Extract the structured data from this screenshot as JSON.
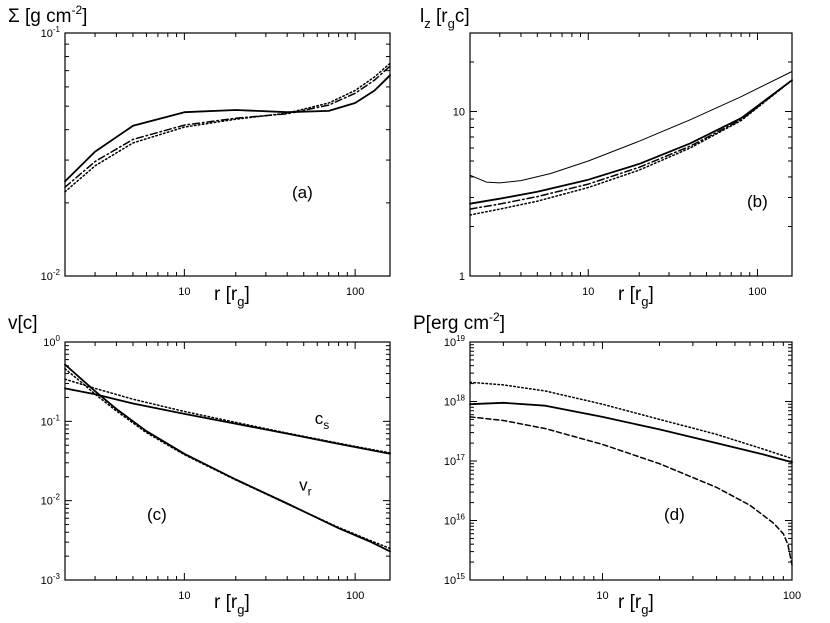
{
  "chart_data": [
    {
      "id": "a",
      "type": "line",
      "xscale": "log",
      "yscale": "log",
      "xlim": [
        2,
        160
      ],
      "ylim": [
        0.01,
        0.1
      ],
      "ylabel": "Σ [g cm",
      "ylabel_sup": "-2",
      "ylabel_end": "]",
      "xlabel": "r [r",
      "xlabel_sub": "g",
      "xlabel_end": "]",
      "panel_label": "(a)",
      "xticks": [
        {
          "v": 10,
          "label": "10"
        },
        {
          "v": 100,
          "label": "100"
        }
      ],
      "yticks": [
        {
          "v": 0.01,
          "base": "10",
          "exp": "-2"
        },
        {
          "v": 0.1,
          "base": "10",
          "exp": "-1"
        }
      ],
      "series": [
        {
          "name": "solid",
          "style": "solid",
          "width": 1.8,
          "x": [
            2,
            3,
            5,
            10,
            20,
            40,
            70,
            100,
            130,
            160
          ],
          "y": [
            0.0245,
            0.0325,
            0.0415,
            0.0472,
            0.0482,
            0.0472,
            0.0478,
            0.0515,
            0.058,
            0.067
          ]
        },
        {
          "name": "dash-dot",
          "style": "dashdot",
          "width": 1.5,
          "x": [
            2,
            3,
            5,
            10,
            20,
            40,
            70,
            100,
            130,
            160
          ],
          "y": [
            0.0232,
            0.0296,
            0.0365,
            0.0418,
            0.0446,
            0.0465,
            0.0505,
            0.0565,
            0.064,
            0.073
          ]
        },
        {
          "name": "dotted",
          "style": "dotted",
          "width": 1.5,
          "x": [
            2,
            3,
            5,
            10,
            20,
            40,
            70,
            100,
            130,
            160
          ],
          "y": [
            0.0222,
            0.0284,
            0.0353,
            0.041,
            0.0442,
            0.0468,
            0.0515,
            0.058,
            0.066,
            0.075
          ]
        }
      ]
    },
    {
      "id": "b",
      "type": "line",
      "xscale": "log",
      "yscale": "log",
      "xlim": [
        2,
        160
      ],
      "ylim": [
        1,
        30
      ],
      "ylabel": "l",
      "ylabel_sub": "z",
      "ylabel_end": " [r",
      "ylabel_sub2": "g",
      "ylabel_end2": "c]",
      "xlabel": "r [r",
      "xlabel_sub": "g",
      "xlabel_end": "]",
      "panel_label": "(b)",
      "xticks": [
        {
          "v": 10,
          "label": "10"
        },
        {
          "v": 100,
          "label": "100"
        }
      ],
      "yticks": [
        {
          "v": 1,
          "label": "1"
        },
        {
          "v": 10,
          "label": "10"
        }
      ],
      "series": [
        {
          "name": "thin-solid",
          "style": "solid",
          "width": 1.0,
          "x": [
            2,
            2.5,
            3,
            4,
            6,
            10,
            20,
            40,
            80,
            160
          ],
          "y": [
            4.1,
            3.72,
            3.68,
            3.8,
            4.2,
            5.0,
            6.6,
            8.9,
            12.3,
            17.5
          ]
        },
        {
          "name": "thick-solid",
          "style": "solid",
          "width": 1.8,
          "x": [
            2,
            3,
            5,
            10,
            20,
            40,
            80,
            160
          ],
          "y": [
            2.75,
            2.95,
            3.25,
            3.85,
            4.8,
            6.4,
            9.1,
            15.5
          ]
        },
        {
          "name": "dash-dot",
          "style": "dashdot",
          "width": 1.5,
          "x": [
            2,
            3,
            5,
            10,
            20,
            40,
            80,
            160
          ],
          "y": [
            2.55,
            2.74,
            3.04,
            3.62,
            4.58,
            6.15,
            8.9,
            15.5
          ]
        },
        {
          "name": "dotted",
          "style": "dotted",
          "width": 1.5,
          "x": [
            2,
            3,
            5,
            10,
            20,
            40,
            80,
            160
          ],
          "y": [
            2.35,
            2.55,
            2.85,
            3.45,
            4.4,
            6.0,
            8.8,
            15.5
          ]
        }
      ]
    },
    {
      "id": "c",
      "type": "line",
      "xscale": "log",
      "yscale": "log",
      "xlim": [
        2,
        160
      ],
      "ylim": [
        0.001,
        1
      ],
      "ylabel": "v[c]",
      "xlabel": "r [r",
      "xlabel_sub": "g",
      "xlabel_end": "]",
      "panel_label": "(c)",
      "annotations": [
        {
          "text": "c",
          "sub": "s",
          "x": 58,
          "y": 0.092
        },
        {
          "text": "v",
          "sub": "r",
          "x": 47,
          "y": 0.0135
        }
      ],
      "xticks": [
        {
          "v": 10,
          "label": "10"
        },
        {
          "v": 100,
          "label": "100"
        }
      ],
      "yticks": [
        {
          "v": 0.001,
          "base": "10",
          "exp": "-3"
        },
        {
          "v": 0.01,
          "base": "10",
          "exp": "-2"
        },
        {
          "v": 0.1,
          "base": "10",
          "exp": "-1"
        },
        {
          "v": 1,
          "base": "10",
          "exp": "0"
        }
      ],
      "series": [
        {
          "name": "cs-solid",
          "style": "solid",
          "width": 1.8,
          "x": [
            2,
            3,
            5,
            10,
            20,
            40,
            80,
            160
          ],
          "y": [
            0.26,
            0.22,
            0.168,
            0.124,
            0.093,
            0.07,
            0.052,
            0.039
          ]
        },
        {
          "name": "cs-dotted",
          "style": "dotted",
          "width": 1.5,
          "x": [
            2,
            3,
            5,
            10,
            20,
            40,
            80,
            160
          ],
          "y": [
            0.34,
            0.26,
            0.19,
            0.133,
            0.097,
            0.071,
            0.053,
            0.04
          ]
        },
        {
          "name": "vr-solid",
          "style": "solid",
          "width": 1.8,
          "x": [
            2,
            2.5,
            3,
            4,
            6,
            10,
            20,
            40,
            80,
            120,
            160
          ],
          "y": [
            0.52,
            0.34,
            0.24,
            0.143,
            0.075,
            0.039,
            0.0185,
            0.0092,
            0.0045,
            0.0031,
            0.0023
          ]
        },
        {
          "name": "vr-dotted",
          "style": "dotted",
          "width": 1.5,
          "x": [
            2,
            2.5,
            3,
            4,
            6,
            10,
            20,
            40,
            80,
            120,
            160
          ],
          "y": [
            0.46,
            0.31,
            0.22,
            0.135,
            0.072,
            0.038,
            0.0182,
            0.0091,
            0.0046,
            0.0032,
            0.0025
          ]
        }
      ]
    },
    {
      "id": "d",
      "type": "line",
      "xscale": "log",
      "yscale": "log",
      "xlim": [
        2,
        100
      ],
      "ylim": [
        1000000000000000.0,
        1e+19
      ],
      "ylabel": "P[erg cm",
      "ylabel_sup": "-2",
      "ylabel_end": "]",
      "xlabel": "r [r",
      "xlabel_sub": "g",
      "xlabel_end": "]",
      "panel_label": "(d)",
      "xticks": [
        {
          "v": 10,
          "label": "10"
        },
        {
          "v": 100,
          "label": "100"
        }
      ],
      "yticks": [
        {
          "v": 1000000000000000.0,
          "base": "10",
          "exp": "15"
        },
        {
          "v": 1e+16,
          "base": "10",
          "exp": "16"
        },
        {
          "v": 1e+17,
          "base": "10",
          "exp": "17"
        },
        {
          "v": 1e+18,
          "base": "10",
          "exp": "18"
        },
        {
          "v": 1e+19,
          "base": "10",
          "exp": "19"
        }
      ],
      "series": [
        {
          "name": "dotted",
          "style": "dotted",
          "width": 1.5,
          "x": [
            2,
            3,
            5,
            10,
            20,
            40,
            70,
            100
          ],
          "y": [
            2.1e+18,
            1.9e+18,
            1.5e+18,
            9e+17,
            5e+17,
            2.8e+17,
            1.6e+17,
            1.1e+17
          ]
        },
        {
          "name": "solid",
          "style": "solid",
          "width": 1.8,
          "x": [
            2,
            3,
            5,
            10,
            20,
            40,
            70,
            100
          ],
          "y": [
            9e+17,
            9.5e+17,
            8.5e+17,
            5.5e+17,
            3.4e+17,
            2e+17,
            1.3e+17,
            9.5e+16
          ]
        },
        {
          "name": "dashed",
          "style": "dashed",
          "width": 1.5,
          "x": [
            2,
            3,
            5,
            10,
            20,
            40,
            60,
            80,
            90,
            95,
            100
          ],
          "y": [
            5.5e+17,
            4.8e+17,
            3.5e+17,
            1.9e+17,
            9e+16,
            3.6e+16,
            1.8e+16,
            9000000000000000.0,
            6000000000000000.0,
            4000000000000000.0,
            1800000000000000.0
          ]
        }
      ]
    }
  ]
}
